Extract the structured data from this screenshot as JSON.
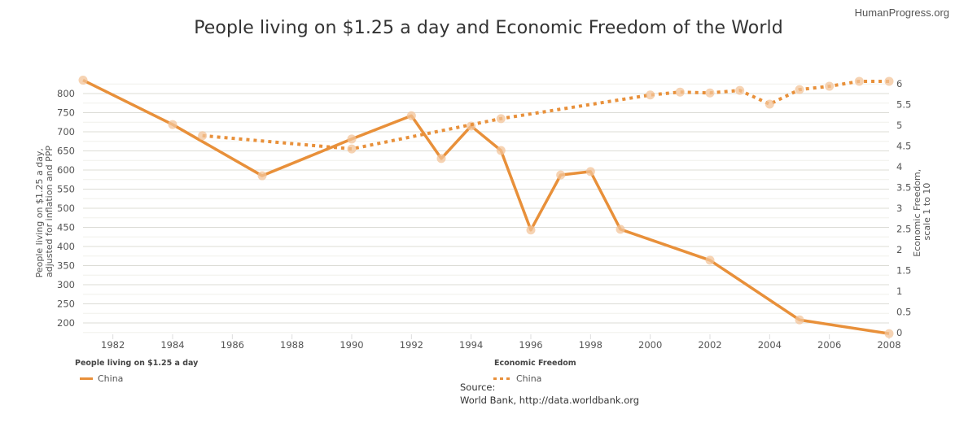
{
  "brand": "HumanProgress.org",
  "chart_data": {
    "type": "line",
    "title": "People living on $1.25 a day and Economic Freedom of the World",
    "xlabel": "",
    "ylabel_left": "People living on $1.25 a day, adjusted for inflation and PPP",
    "ylabel_right": "Economic Freedom, scale 1 to 10",
    "xlim": [
      1981,
      2008
    ],
    "ylim_left": [
      170,
      840
    ],
    "ylim_right": [
      0,
      6.2
    ],
    "x_ticks": [
      "1982",
      "1984",
      "1986",
      "1988",
      "1990",
      "1992",
      "1994",
      "1996",
      "1998",
      "2000",
      "2002",
      "2004",
      "2006",
      "2008"
    ],
    "y_ticks_left": [
      "200",
      "250",
      "300",
      "350",
      "400",
      "450",
      "500",
      "550",
      "600",
      "650",
      "700",
      "750",
      "800"
    ],
    "y_ticks_right": [
      "0",
      "0.5",
      "1",
      "1.5",
      "2",
      "2.5",
      "3",
      "3.5",
      "4",
      "4.5",
      "5",
      "5.5",
      "6"
    ],
    "grid": true,
    "series": [
      {
        "name": "China",
        "group": "People living on $1.25 a day",
        "axis": "left",
        "style": "solid",
        "color": "#E8903A",
        "x": [
          1981,
          1984,
          1987,
          1990,
          1992,
          1993,
          1994,
          1995,
          1996,
          1997,
          1998,
          1999,
          2002,
          2005,
          2008
        ],
        "values": [
          835,
          719,
          585,
          681,
          742,
          630,
          715,
          651,
          443,
          587,
          596,
          445,
          364,
          208,
          172
        ]
      },
      {
        "name": "China",
        "group": "Economic Freedom",
        "axis": "right",
        "style": "dotted",
        "color": "#E8903A",
        "x": [
          1985,
          1990,
          1995,
          2000,
          2001,
          2002,
          2003,
          2004,
          2005,
          2006,
          2007,
          2008
        ],
        "values": [
          4.75,
          4.43,
          5.16,
          5.73,
          5.8,
          5.78,
          5.84,
          5.51,
          5.86,
          5.94,
          6.06,
          6.06
        ]
      }
    ],
    "legend": [
      {
        "title": "People living on $1.25 a day",
        "label": "China",
        "style": "solid"
      },
      {
        "title": "Economic Freedom",
        "label": "China",
        "style": "dotted"
      }
    ]
  },
  "source": {
    "label": "Source:",
    "text": "World Bank, http://data.worldbank.org"
  }
}
